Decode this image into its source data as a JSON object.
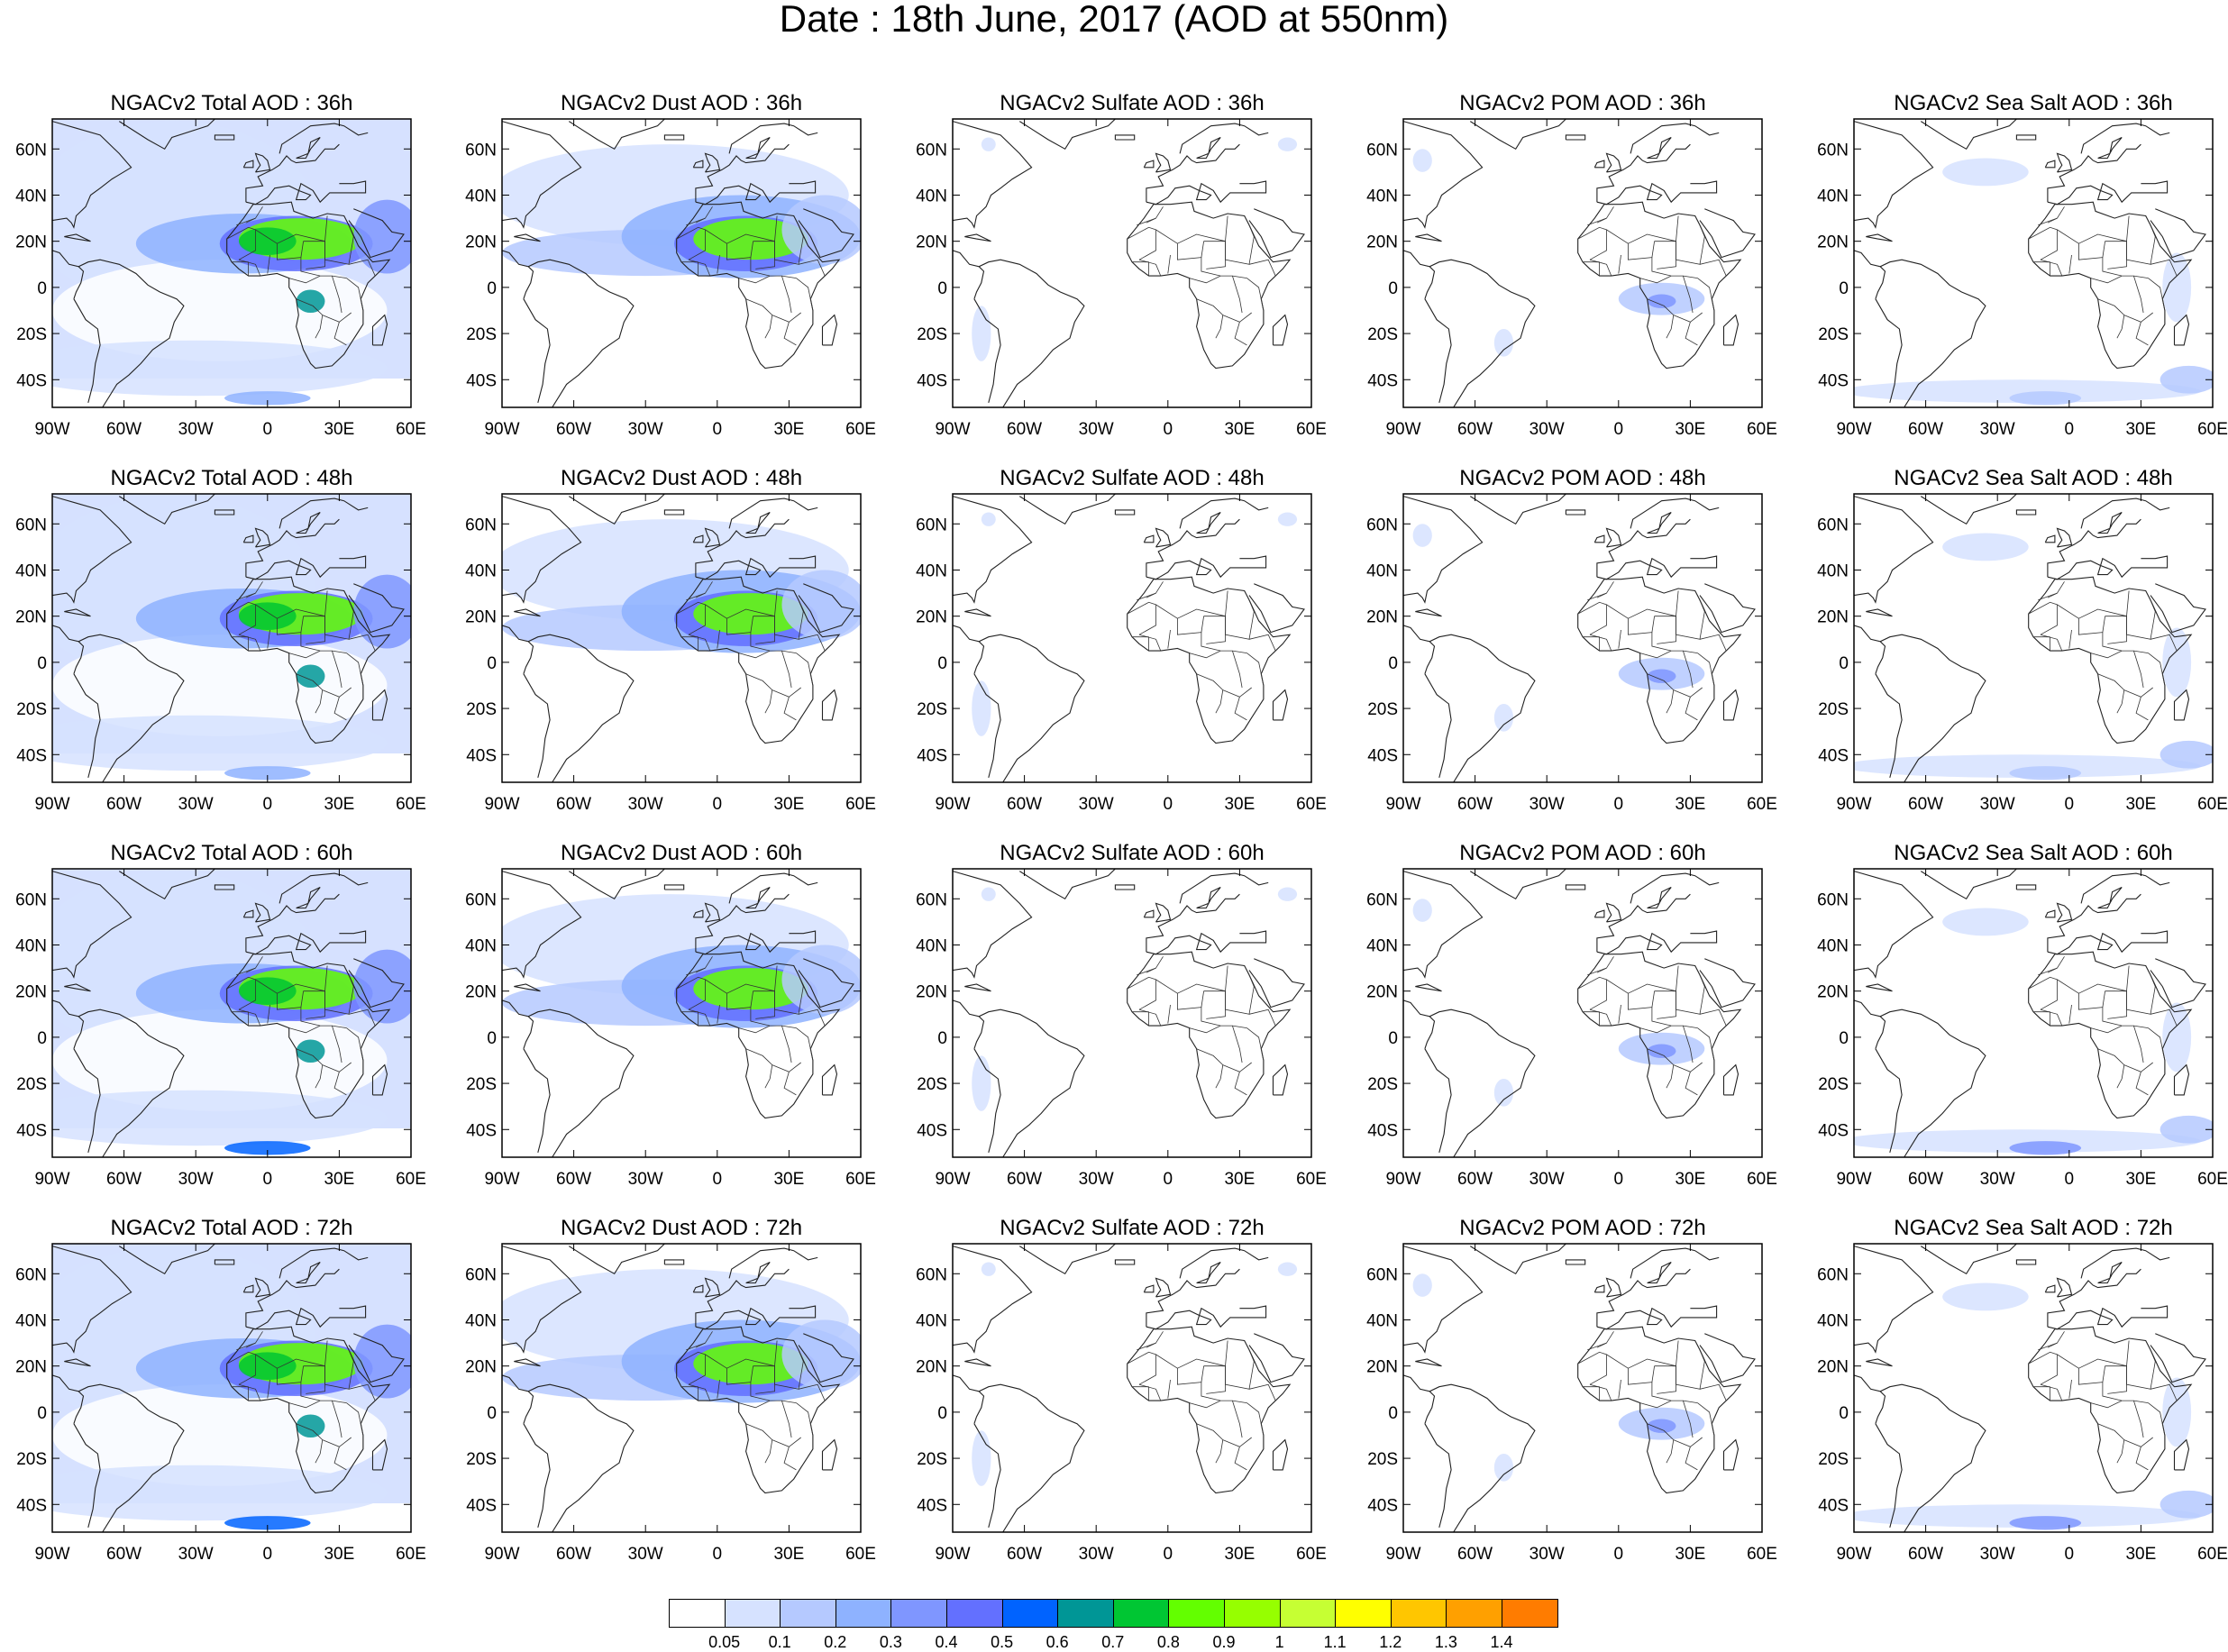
{
  "title": "Date : 18th June, 2017 (AOD at 550nm)",
  "panel_titles": [
    [
      "NGACv2 Total AOD : 36h",
      "NGACv2 Dust AOD : 36h",
      "NGACv2 Sulfate AOD : 36h",
      "NGACv2 POM AOD : 36h",
      "NGACv2 Sea Salt AOD : 36h"
    ],
    [
      "NGACv2 Total AOD : 48h",
      "NGACv2 Dust AOD : 48h",
      "NGACv2 Sulfate AOD : 48h",
      "NGACv2 POM AOD : 48h",
      "NGACv2 Sea Salt AOD : 48h"
    ],
    [
      "NGACv2 Total AOD : 60h",
      "NGACv2 Dust AOD : 60h",
      "NGACv2 Sulfate AOD : 60h",
      "NGACv2 POM AOD : 60h",
      "NGACv2 Sea Salt AOD : 60h"
    ],
    [
      "NGACv2 Total AOD : 72h",
      "NGACv2 Dust AOD : 72h",
      "NGACv2 Sulfate AOD : 72h",
      "NGACv2 POM AOD : 72h",
      "NGACv2 Sea Salt  AOD : 72h"
    ]
  ],
  "lat_ticks": [
    "60N",
    "40N",
    "20N",
    "0",
    "20S",
    "40S"
  ],
  "lon_ticks": [
    "90W",
    "60W",
    "30W",
    "0",
    "30E",
    "60E"
  ],
  "colorbar": {
    "labels": [
      "0.05",
      "0.1",
      "0.2",
      "0.3",
      "0.4",
      "0.5",
      "0.6",
      "0.7",
      "0.8",
      "0.9",
      "1",
      "1.1",
      "1.2",
      "1.3",
      "1.4"
    ],
    "colors": [
      "#ffffff",
      "#d6e2ff",
      "#b5c9ff",
      "#8eb2ff",
      "#7f96ff",
      "#6370ff",
      "#0063ff",
      "#009696",
      "#00c633",
      "#63ff00",
      "#96ff00",
      "#c6ff33",
      "#ffff00",
      "#ffc600",
      "#ffa000",
      "#ff7c00",
      "#ff1900"
    ]
  }
}
